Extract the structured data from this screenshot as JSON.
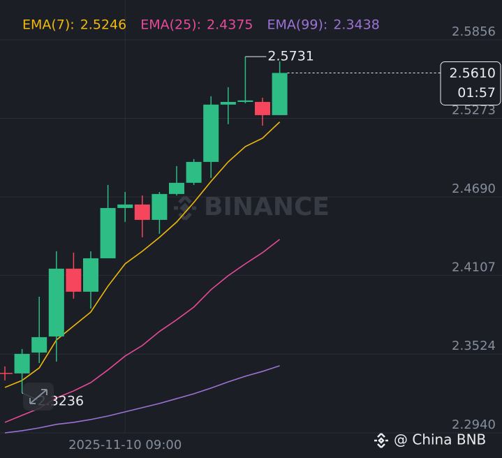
{
  "chart_data": {
    "type": "candlestick",
    "categories": [
      null,
      null,
      null,
      null,
      null,
      null,
      null,
      "2025-11-10 09:00",
      null,
      null,
      null,
      null,
      null,
      null,
      null,
      null,
      null
    ],
    "candles": {
      "open": [
        2.3385,
        2.3381,
        2.3536,
        2.3655,
        2.4158,
        2.3987,
        2.4235,
        2.4608,
        2.4634,
        2.452,
        2.4712,
        2.4795,
        2.495,
        2.5375,
        2.5395,
        2.5395,
        2.5297
      ],
      "high": [
        2.3433,
        2.3562,
        2.395,
        2.4287,
        2.4277,
        2.4287,
        2.4779,
        2.4727,
        2.4701,
        2.4727,
        2.4919,
        2.4971,
        2.5437,
        2.5504,
        2.5731,
        2.5426,
        2.5696
      ],
      "low": [
        2.3329,
        2.3236,
        2.3458,
        2.3469,
        2.3935,
        2.3862,
        2.4235,
        2.4505,
        2.4391,
        2.4417,
        2.4701,
        2.4779,
        2.4831,
        2.523,
        2.5385,
        2.5219,
        2.5297
      ],
      "close": [
        2.3381,
        2.3526,
        2.365,
        2.4158,
        2.3987,
        2.4235,
        2.4608,
        2.4634,
        2.452,
        2.4712,
        2.4795,
        2.495,
        2.5375,
        2.5395,
        2.5406,
        2.5297,
        2.561
      ],
      "up_color": "#2ebd85",
      "down_color": "#f6465d"
    },
    "series": [
      {
        "name": "EMA(7):",
        "color": "#f0b90b",
        "values": [
          2.3277,
          2.3329,
          2.3422,
          2.3629,
          2.3733,
          2.3836,
          2.4028,
          2.4194,
          2.4287,
          2.439,
          2.4504,
          2.4649,
          2.4805,
          2.495,
          2.5064,
          2.5126,
          2.5246
        ]
      },
      {
        "name": "EMA(25):",
        "color": "#e84a9a",
        "values": [
          2.3018,
          2.307,
          2.3122,
          2.3199,
          2.3251,
          2.3313,
          2.3407,
          2.351,
          2.3588,
          2.3692,
          2.3779,
          2.3873,
          2.4002,
          2.4106,
          2.4194,
          2.4277,
          2.4375
        ]
      },
      {
        "name": "EMA(99):",
        "color": "#9d72d6",
        "values": [
          2.294,
          2.2956,
          2.2977,
          2.3003,
          2.3018,
          2.3039,
          2.3065,
          2.3096,
          2.3127,
          2.3158,
          2.3194,
          2.323,
          2.3272,
          2.3318,
          2.336,
          2.3396,
          2.3438
        ]
      }
    ],
    "ylim": [
      2.294,
      2.6151
    ],
    "yticks": [
      2.5856,
      2.5273,
      {
        "value": 2.469,
        "label": "2.4690"
      },
      2.4107,
      2.3524,
      {
        "value": 2.294,
        "label": "2.2940"
      }
    ],
    "grid": true,
    "current_price_label": "2.5610",
    "countdown": "01:57",
    "watermark": "BINANCE",
    "credit": "@ China BNB"
  }
}
